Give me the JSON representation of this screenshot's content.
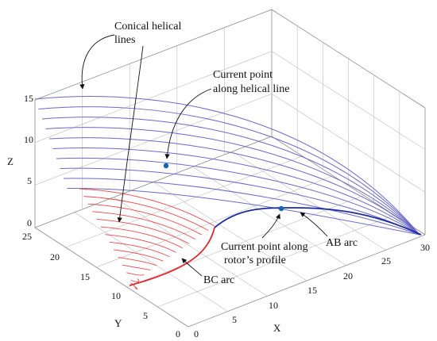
{
  "axes": {
    "x": {
      "label": "X",
      "ticks": [
        "0",
        "5",
        "10",
        "15",
        "20",
        "25",
        "30"
      ]
    },
    "y": {
      "label": "Y",
      "ticks": [
        "0",
        "5",
        "10",
        "15",
        "20",
        "25"
      ]
    },
    "z": {
      "label": "Z",
      "ticks": [
        "0",
        "5",
        "10",
        "15"
      ]
    }
  },
  "annotations": {
    "conical": "Conical helical lines",
    "conical_line1": "Conical helical",
    "conical_line2": "lines",
    "current_helical": "Current point along helical line",
    "current_helical_line1": "Current point",
    "current_helical_line2": "along helical line",
    "current_profile": "Current point along rotor's profile",
    "current_profile_line1": "Current point along",
    "current_profile_line2": "rotor’s profile",
    "ab_arc": "AB arc",
    "bc_arc": "BC arc"
  },
  "colors": {
    "helical_lines": "#6a6ac8",
    "bc_lines": "#e8474d",
    "bc_arc": "#e02830",
    "ab_arc": "#1b2a9e",
    "points": "#1565b0",
    "box": "#8a8a8a",
    "grid": "#bdbdbd"
  },
  "grid": true
}
